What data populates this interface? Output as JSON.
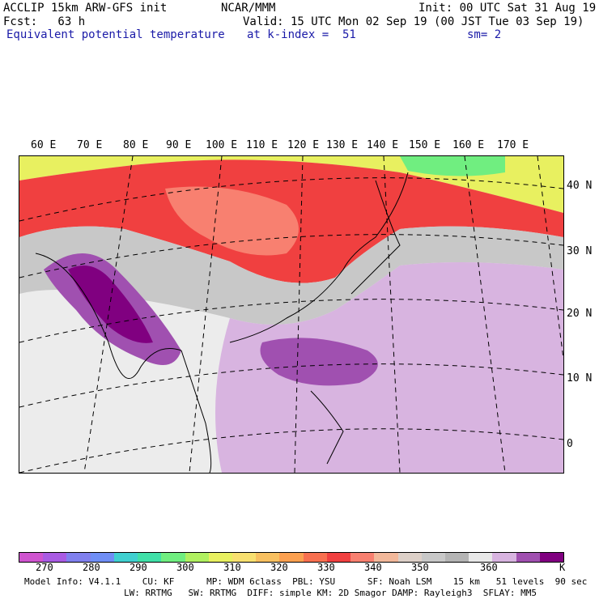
{
  "header": {
    "left_line1": "ACCLIP 15km ARW-GFS init",
    "left_line2": "Fcst:   63 h",
    "variable": "Equivalent potential temperature",
    "center_line1": "NCAR/MMM",
    "center_line2": "Valid: 15 UTC Mon 02 Sep 19 (00 JST Tue 03 Sep 19)",
    "center_line3": "at k-index =  51",
    "init": "Init: 00 UTC Sat 31 Aug 19",
    "smoothing": "sm= 2"
  },
  "map": {
    "lon_labels": [
      "60 E",
      "70 E",
      "80 E",
      "90 E",
      "100 E",
      "110 E",
      "120 E",
      "130 E",
      "140 E",
      "150 E",
      "160 E",
      "170 E"
    ],
    "lat_labels": [
      "40 N",
      "30 N",
      "20 N",
      "10 N",
      "0"
    ]
  },
  "colorbar": {
    "colors": [
      "#cf54cf",
      "#a95be3",
      "#8080ee",
      "#6f8ef5",
      "#40d0d0",
      "#40e0a8",
      "#70ee80",
      "#b0f060",
      "#e8f060",
      "#f8e070",
      "#f8c060",
      "#fca050",
      "#f87050",
      "#f04040",
      "#f88070",
      "#f2b89a",
      "#ddd0c8",
      "#c8c8c8",
      "#b4b4b4",
      "#e8e8e8",
      "#d8b4e0",
      "#a050b0",
      "#800080"
    ],
    "ticks": [
      "270",
      "280",
      "290",
      "300",
      "310",
      "320",
      "330",
      "340",
      "350",
      "360",
      "K"
    ]
  },
  "model_info": {
    "line1": "Model Info: V4.1.1    CU: KF      MP: WDM 6class  PBL: YSU      SF: Noah LSM    15 km   51 levels  90 sec",
    "line2": "LW: RRTMG   SW: RRTMG  DIFF: simple KM: 2D Smagor DAMP: Rayleigh3  SFLAY: MM5"
  }
}
